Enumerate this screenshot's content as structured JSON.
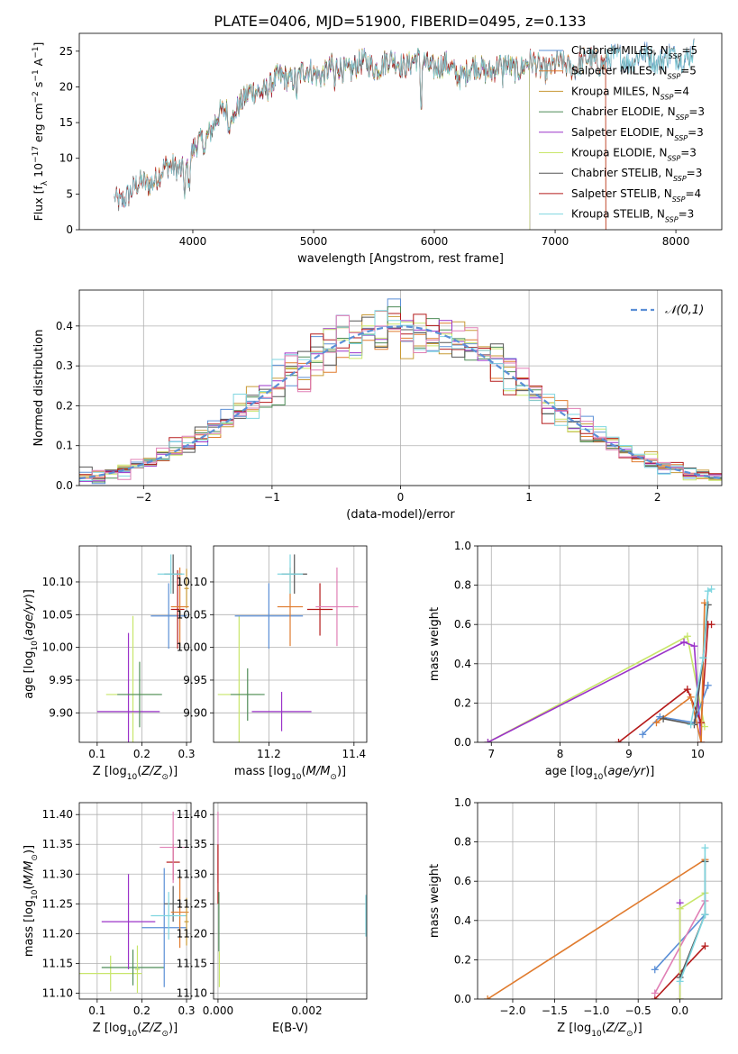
{
  "figure": {
    "title": "PLATE=0406, MJD=51900, FIBERID=0495, z=0.133",
    "colors": {
      "Chabrier MILES": "#5b8fd6",
      "Salpeter MILES": "#e07b2e",
      "Kroupa MILES": "#c89a36",
      "Chabrier ELODIE": "#4e8c57",
      "Salpeter ELODIE": "#9b33c9",
      "Kroupa ELODIE": "#c8e66a",
      "Chabrier STELIB": "#555555",
      "Salpeter STELIB": "#b51b1b",
      "Kroupa STELIB": "#7fd6e0",
      "pink": "#e07fb5",
      "normal": "#5b8fd6"
    }
  },
  "chart_data": [
    {
      "id": "spectrum",
      "type": "line",
      "xlabel": "wavelength [Angstrom, rest frame]",
      "ylabel": "Flux [f_λ 10^-17 erg cm^-2 s^-1 A^-1]",
      "xlim": [
        3060,
        8380
      ],
      "ylim": [
        0,
        27.5
      ],
      "xticks": [
        4000,
        5000,
        6000,
        7000,
        8000
      ],
      "yticks": [
        0,
        5,
        10,
        15,
        20,
        25
      ],
      "grid": false,
      "legend_position": "right",
      "continuum": {
        "x": [
          3350,
          3500,
          3700,
          3850,
          3950,
          4050,
          4200,
          4400,
          4600,
          4800,
          5000,
          5200,
          5400,
          5600,
          5800,
          6000,
          6200,
          6400,
          6600,
          6800,
          7000,
          7200,
          7400,
          7600,
          7800,
          8000,
          8150
        ],
        "y": [
          4.0,
          5.5,
          7.5,
          9.0,
          9.0,
          12.0,
          15.5,
          18.0,
          20.0,
          21.5,
          22.0,
          22.5,
          23.0,
          23.3,
          23.5,
          23.2,
          22.0,
          22.5,
          22.8,
          23.0,
          22.8,
          23.2,
          23.8,
          24.0,
          24.2,
          24.0,
          25.0
        ]
      },
      "series": [
        {
          "name": "Chabrier MILES",
          "ssp": "5",
          "xrange": [
            3400,
            8150
          ]
        },
        {
          "name": "Salpeter MILES",
          "ssp": "5",
          "xrange": [
            3520,
            7420
          ]
        },
        {
          "name": "Kroupa MILES",
          "ssp": "4",
          "xrange": [
            3520,
            7420
          ]
        },
        {
          "name": "Chabrier ELODIE",
          "ssp": "3",
          "xrange": [
            3900,
            6790
          ]
        },
        {
          "name": "Salpeter ELODIE",
          "ssp": "3",
          "xrange": [
            3900,
            6790
          ]
        },
        {
          "name": "Kroupa ELODIE",
          "ssp": "3",
          "xrange": [
            3900,
            6790
          ]
        },
        {
          "name": "Chabrier STELIB",
          "ssp": "3",
          "xrange": [
            3350,
            8150
          ]
        },
        {
          "name": "Salpeter STELIB",
          "ssp": "4",
          "xrange": [
            3350,
            7420
          ]
        },
        {
          "name": "Kroupa STELIB",
          "ssp": "3",
          "xrange": [
            3350,
            8150
          ]
        }
      ]
    },
    {
      "id": "residuals",
      "type": "histogram",
      "xlabel": "(data-model)/error",
      "ylabel": "Normed distribution",
      "xlim": [
        -2.5,
        2.5
      ],
      "ylim": [
        0,
        0.49
      ],
      "xticks": [
        -2,
        -1,
        0,
        1,
        2
      ],
      "yticks": [
        0.0,
        0.1,
        0.2,
        0.3,
        0.4
      ],
      "grid": true,
      "bin_width": 0.1,
      "legend": "𝒩(0,1)",
      "legend_position": "top-right",
      "normal_curve": {
        "mean": 0,
        "sigma": 1
      }
    },
    {
      "id": "age-vs-Z",
      "type": "scatter",
      "xlabel": "Z [log10(Z/Z☉)]",
      "ylabel": "age  [log10(age/yr)]",
      "xlim": [
        0.06,
        0.31
      ],
      "ylim": [
        9.855,
        10.155
      ],
      "xticks": [
        0.1,
        0.2,
        0.3
      ],
      "yticks": [
        9.9,
        9.95,
        10.0,
        10.05,
        10.1
      ],
      "grid": true,
      "points": [
        {
          "color": "Kroupa ELODIE",
          "x": 0.18,
          "y": 9.928,
          "xerr": 0.06,
          "yerr": 0.12
        },
        {
          "color": "Salpeter ELODIE",
          "x": 0.17,
          "y": 9.902,
          "xerr": 0.07,
          "yerr": 0.12
        },
        {
          "color": "Chabrier ELODIE",
          "x": 0.195,
          "y": 9.928,
          "xerr": 0.05,
          "yerr": 0.05
        },
        {
          "color": "Chabrier MILES",
          "x": 0.26,
          "y": 10.048,
          "xerr": 0.04,
          "yerr": 0.05
        },
        {
          "color": "Salpeter STELIB",
          "x": 0.28,
          "y": 10.058,
          "xerr": 0.015,
          "yerr": 0.06
        },
        {
          "color": "Salpeter MILES",
          "x": 0.285,
          "y": 10.062,
          "xerr": 0.02,
          "yerr": 0.06
        },
        {
          "color": "Chabrier STELIB",
          "x": 0.27,
          "y": 10.112,
          "xerr": 0.02,
          "yerr": 0.03
        },
        {
          "color": "Kroupa STELIB",
          "x": 0.265,
          "y": 10.112,
          "xerr": 0.03,
          "yerr": 0.03
        },
        {
          "color": "Kroupa MILES",
          "x": 0.3,
          "y": 10.09,
          "xerr": 0.005,
          "yerr": 0.03
        }
      ]
    },
    {
      "id": "age-vs-mass",
      "type": "scatter",
      "xlabel": "mass [log10(M/M☉)]",
      "ylabel": "",
      "xlim": [
        11.07,
        11.43
      ],
      "ylim": [
        9.855,
        10.155
      ],
      "xticks": [
        11.2,
        11.4
      ],
      "yticks": [
        9.9,
        9.95,
        10.0,
        10.05,
        10.1
      ],
      "grid": true,
      "points": [
        {
          "color": "Kroupa ELODIE",
          "x": 11.13,
          "y": 9.928,
          "xerr": 0.05,
          "yerr": 0.12
        },
        {
          "color": "Chabrier ELODIE",
          "x": 11.15,
          "y": 9.928,
          "xerr": 0.04,
          "yerr": 0.04
        },
        {
          "color": "Salpeter ELODIE",
          "x": 11.23,
          "y": 9.902,
          "xerr": 0.07,
          "yerr": 0.03
        },
        {
          "color": "Chabrier MILES",
          "x": 11.2,
          "y": 10.048,
          "xerr": 0.08,
          "yerr": 0.05
        },
        {
          "color": "Salpeter MILES",
          "x": 11.25,
          "y": 10.062,
          "xerr": 0.03,
          "yerr": 0.06
        },
        {
          "color": "Salpeter STELIB",
          "x": 11.32,
          "y": 10.058,
          "xerr": 0.03,
          "yerr": 0.04
        },
        {
          "color": "pink",
          "x": 11.36,
          "y": 10.062,
          "xerr": 0.05,
          "yerr": 0.06
        },
        {
          "color": "Chabrier STELIB",
          "x": 11.26,
          "y": 10.112,
          "xerr": 0.03,
          "yerr": 0.03
        },
        {
          "color": "Kroupa STELIB",
          "x": 11.25,
          "y": 10.112,
          "xerr": 0.03,
          "yerr": 0.03
        }
      ]
    },
    {
      "id": "mass-weight-vs-age",
      "type": "line",
      "xlabel": "age  [log10(age/yr)]",
      "ylabel": "mass weight",
      "xlim": [
        6.8,
        10.35
      ],
      "ylim": [
        0,
        1
      ],
      "xticks": [
        7,
        8,
        9,
        10
      ],
      "yticks": [
        0.0,
        0.2,
        0.4,
        0.6,
        0.8,
        1.0
      ],
      "grid": true,
      "series": [
        {
          "color": "Kroupa ELODIE",
          "x": [
            6.95,
            9.85,
            10.1
          ],
          "y": [
            0.0,
            0.54,
            0.08
          ]
        },
        {
          "color": "Salpeter ELODIE",
          "x": [
            6.95,
            9.8,
            9.95,
            10.05
          ],
          "y": [
            0.0,
            0.51,
            0.49,
            0.0
          ]
        },
        {
          "color": "Salpeter STELIB",
          "x": [
            8.85,
            9.85,
            10.05,
            10.15,
            10.2
          ],
          "y": [
            0.0,
            0.27,
            0.1,
            0.6,
            0.6
          ]
        },
        {
          "color": "Chabrier MILES",
          "x": [
            9.2,
            9.45,
            9.95,
            10.15
          ],
          "y": [
            0.04,
            0.13,
            0.1,
            0.29
          ]
        },
        {
          "color": "Salpeter MILES",
          "x": [
            9.4,
            9.9,
            10.05,
            10.1
          ],
          "y": [
            0.1,
            0.23,
            0.0,
            0.71
          ]
        },
        {
          "color": "Chabrier STELIB",
          "x": [
            9.5,
            9.95,
            10.08,
            10.15
          ],
          "y": [
            0.12,
            0.09,
            0.43,
            0.7
          ]
        },
        {
          "color": "Kroupa STELIB",
          "x": [
            9.9,
            10.08,
            10.15,
            10.2
          ],
          "y": [
            0.09,
            0.43,
            0.77,
            0.78
          ]
        }
      ]
    },
    {
      "id": "mass-vs-Z",
      "type": "scatter",
      "xlabel": "Z [log10(Z/Z☉)]",
      "ylabel": "mass [log10(M/M☉)]",
      "xlim": [
        0.06,
        0.31
      ],
      "ylim": [
        11.09,
        11.42
      ],
      "xticks": [
        0.1,
        0.2,
        0.3
      ],
      "yticks": [
        11.1,
        11.15,
        11.2,
        11.25,
        11.3,
        11.35,
        11.4
      ],
      "grid": true,
      "points": [
        {
          "color": "Kroupa ELODIE",
          "x": 0.13,
          "y": 11.133,
          "xerr": 0.07,
          "yerr": 0.03
        },
        {
          "color": "Chabrier ELODIE",
          "x": 0.18,
          "y": 11.143,
          "xerr": 0.07,
          "yerr": 0.03
        },
        {
          "color": "Salpeter ELODIE",
          "x": 0.17,
          "y": 11.22,
          "xerr": 0.06,
          "yerr": 0.08
        },
        {
          "color": "Kroupa ELODIE",
          "x": 0.19,
          "y": 11.14,
          "xerr": 0.005,
          "yerr": 0.04
        },
        {
          "color": "Chabrier MILES",
          "x": 0.25,
          "y": 11.21,
          "xerr": 0.05,
          "yerr": 0.1
        },
        {
          "color": "Salpeter STELIB",
          "x": 0.27,
          "y": 11.32,
          "xerr": 0.015,
          "yerr": 0.03
        },
        {
          "color": "pink",
          "x": 0.27,
          "y": 11.345,
          "xerr": 0.03,
          "yerr": 0.06
        },
        {
          "color": "Chabrier STELIB",
          "x": 0.27,
          "y": 11.25,
          "xerr": 0.02,
          "yerr": 0.03
        },
        {
          "color": "Salpeter MILES",
          "x": 0.285,
          "y": 11.236,
          "xerr": 0.02,
          "yerr": 0.06
        },
        {
          "color": "Kroupa STELIB",
          "x": 0.26,
          "y": 11.23,
          "xerr": 0.04,
          "yerr": 0.04
        },
        {
          "color": "Kroupa MILES",
          "x": 0.3,
          "y": 11.22,
          "xerr": 0.005,
          "yerr": 0.04
        }
      ]
    },
    {
      "id": "mass-vs-ebv",
      "type": "scatter",
      "xlabel": "E(B-V)",
      "ylabel": "",
      "xlim": [
        -0.0001,
        0.00335
      ],
      "ylim": [
        11.09,
        11.42
      ],
      "xticks": [
        0.0,
        0.002
      ],
      "xtick_labels": [
        "0.000",
        "0.002"
      ],
      "yticks": [
        11.1,
        11.15,
        11.2,
        11.25,
        11.3,
        11.35,
        11.4
      ],
      "grid": true,
      "points": [
        {
          "color": "pink",
          "x": 0.0,
          "y": 11.345,
          "xerr": 0,
          "yerr": 0.06
        },
        {
          "color": "Salpeter STELIB",
          "x": 0.0,
          "y": 11.3,
          "xerr": 0,
          "yerr": 0.05
        },
        {
          "color": "Chabrier ELODIE",
          "x": 2e-05,
          "y": 11.22,
          "xerr": 0,
          "yerr": 0.05
        },
        {
          "color": "Kroupa ELODIE",
          "x": 3e-05,
          "y": 11.14,
          "xerr": 0,
          "yerr": 0.03
        },
        {
          "color": "Kroupa STELIB",
          "x": 0.00333,
          "y": 11.23,
          "xerr": 0,
          "yerr": 0.035
        }
      ]
    },
    {
      "id": "mass-weight-vs-Z",
      "type": "line",
      "xlabel": "Z [log10(Z/Z☉)]",
      "ylabel": "mass weight",
      "xlim": [
        -2.42,
        0.5
      ],
      "ylim": [
        0,
        1
      ],
      "xticks": [
        -2.0,
        -1.5,
        -1.0,
        -0.5,
        0.0
      ],
      "yticks": [
        0.0,
        0.2,
        0.4,
        0.6,
        0.8,
        1.0
      ],
      "grid": true,
      "series": [
        {
          "color": "Salpeter MILES",
          "x": [
            -2.3,
            0.3
          ],
          "y": [
            0.0,
            0.71
          ]
        },
        {
          "color": "Chabrier MILES",
          "x": [
            -0.3,
            0.3
          ],
          "y": [
            0.15,
            0.43
          ]
        },
        {
          "color": "Salpeter STELIB",
          "x": [
            -0.3,
            0.3
          ],
          "y": [
            0.0,
            0.27
          ]
        },
        {
          "color": "pink",
          "x": [
            -0.3,
            0.3
          ],
          "y": [
            0.03,
            0.5
          ]
        },
        {
          "color": "Salpeter ELODIE",
          "x": [
            0.0,
            0.0
          ],
          "y": [
            0.0,
            0.49
          ]
        },
        {
          "color": "Kroupa ELODIE",
          "x": [
            0.0,
            0.0,
            0.3
          ],
          "y": [
            0.0,
            0.46,
            0.54
          ]
        },
        {
          "color": "Chabrier STELIB",
          "x": [
            0.0,
            0.3,
            0.3
          ],
          "y": [
            0.11,
            0.43,
            0.7
          ]
        },
        {
          "color": "Kroupa STELIB",
          "x": [
            0.0,
            0.3,
            0.3
          ],
          "y": [
            0.09,
            0.43,
            0.77
          ]
        }
      ]
    }
  ]
}
